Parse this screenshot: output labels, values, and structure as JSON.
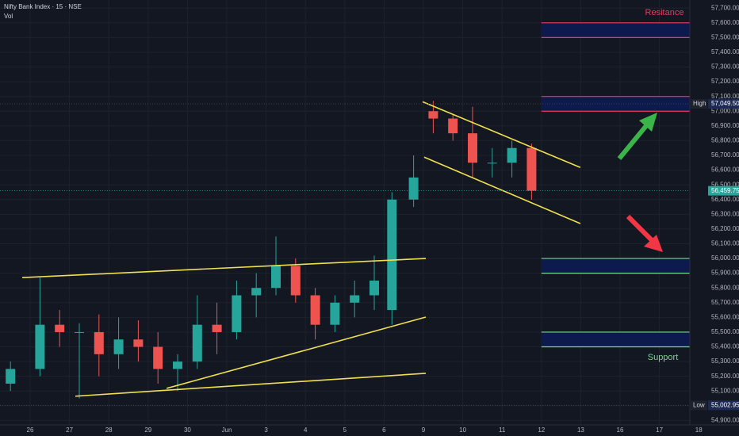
{
  "chart_data": {
    "type": "candlestick",
    "title": "Nifty Bank Index · 15 · NSE",
    "volume_label": "Vol",
    "x": [
      -0.5,
      0.25,
      0.75,
      1.25,
      1.75,
      2.25,
      2.75,
      3.25,
      3.75,
      4.25,
      4.75,
      5.25,
      5.75,
      6.25,
      6.75,
      7.25,
      7.75,
      8.25,
      8.75,
      9.2,
      9.75,
      10.25,
      10.75,
      11.25,
      11.75,
      12.25,
      12.75
    ],
    "open": [
      55150,
      55250,
      55550,
      55500,
      55500,
      55350,
      55450,
      55400,
      55250,
      55300,
      55550,
      55500,
      55750,
      55800,
      55950,
      55750,
      55550,
      55700,
      55750,
      55650,
      56400,
      57000,
      56950,
      56850,
      56650,
      56650,
      56750
    ],
    "high": [
      55300,
      55870,
      55650,
      55560,
      55620,
      55600,
      55580,
      55500,
      55350,
      55750,
      55700,
      55850,
      55900,
      56150,
      56000,
      55800,
      55750,
      55850,
      56020,
      56450,
      56700,
      57070,
      56980,
      57030,
      56750,
      56800,
      56780
    ],
    "low": [
      55100,
      55200,
      55400,
      55050,
      55200,
      55250,
      55300,
      55150,
      55100,
      55250,
      55350,
      55450,
      55600,
      55750,
      55700,
      55450,
      55500,
      55600,
      55650,
      55550,
      56350,
      56850,
      56800,
      56550,
      56550,
      56550,
      56400
    ],
    "close": [
      55250,
      55550,
      55500,
      55500,
      55350,
      55450,
      55400,
      55250,
      55300,
      55550,
      55500,
      55750,
      55800,
      55950,
      55750,
      55550,
      55700,
      55750,
      55850,
      56400,
      56550,
      56950,
      56850,
      56650,
      56650,
      56750,
      56460
    ],
    "up_color": "#26a69a",
    "down_color": "#ef5350",
    "xlim": [
      -0.766,
      16.774
    ],
    "xticks": [
      {
        "value": 0,
        "label": "26"
      },
      {
        "value": 1,
        "label": "27"
      },
      {
        "value": 2,
        "label": "28"
      },
      {
        "value": 3,
        "label": "29"
      },
      {
        "value": 4,
        "label": "30"
      },
      {
        "value": 5,
        "label": "Jun"
      },
      {
        "value": 6,
        "label": "3"
      },
      {
        "value": 7,
        "label": "4"
      },
      {
        "value": 8,
        "label": "5"
      },
      {
        "value": 9,
        "label": "6"
      },
      {
        "value": 10,
        "label": "9"
      },
      {
        "value": 11,
        "label": "10"
      },
      {
        "value": 12,
        "label": "11"
      },
      {
        "value": 13,
        "label": "12"
      },
      {
        "value": 14,
        "label": "13"
      },
      {
        "value": 15,
        "label": "16"
      },
      {
        "value": 16,
        "label": "17"
      },
      {
        "value": 17,
        "label": "18"
      }
    ],
    "ylim": [
      54870,
      57755
    ],
    "yticks": [
      {
        "value": 57700,
        "label": "57,700.00"
      },
      {
        "value": 57600,
        "label": "57,600.00"
      },
      {
        "value": 57500,
        "label": "57,500.00"
      },
      {
        "value": 57400,
        "label": "57,400.00"
      },
      {
        "value": 57300,
        "label": "57,300.00"
      },
      {
        "value": 57200,
        "label": "57,200.00"
      },
      {
        "value": 57100,
        "label": "57,100.00"
      },
      {
        "value": 57000,
        "label": "57,000.00"
      },
      {
        "value": 56900,
        "label": "56,900.00"
      },
      {
        "value": 56800,
        "label": "56,800.00"
      },
      {
        "value": 56700,
        "label": "56,700.00"
      },
      {
        "value": 56600,
        "label": "56,600.00"
      },
      {
        "value": 56500,
        "label": "56,500.00"
      },
      {
        "value": 56400,
        "label": "56,400.00"
      },
      {
        "value": 56300,
        "label": "56,300.00"
      },
      {
        "value": 56200,
        "label": "56,200.00"
      },
      {
        "value": 56100,
        "label": "56,100.00"
      },
      {
        "value": 56000,
        "label": "56,000.00"
      },
      {
        "value": 55900,
        "label": "55,900.00"
      },
      {
        "value": 55800,
        "label": "55,800.00"
      },
      {
        "value": 55700,
        "label": "55,700.00"
      },
      {
        "value": 55600,
        "label": "55,600.00"
      },
      {
        "value": 55500,
        "label": "55,500.00"
      },
      {
        "value": 55400,
        "label": "55,400.00"
      },
      {
        "value": 55300,
        "label": "55,300.00"
      },
      {
        "value": 55200,
        "label": "55,200.00"
      },
      {
        "value": 55100,
        "label": "55,100.00"
      },
      {
        "value": 55000,
        "label": "55,000.00"
      },
      {
        "value": 54900,
        "label": "54,900.00"
      }
    ],
    "grid": true,
    "trendline_color": "#f0e050",
    "trendlines": [
      {
        "x": [
          -0.2,
          10.06
        ],
        "y": [
          55870,
          56000
        ]
      },
      {
        "x": [
          3.47,
          10.06
        ],
        "y": [
          55118,
          55602
        ]
      },
      {
        "x": [
          1.15,
          10.06
        ],
        "y": [
          55065,
          55220
        ]
      },
      {
        "x": [
          9.98,
          13.99
        ],
        "y": [
          57064,
          56618
        ]
      },
      {
        "x": [
          10.02,
          13.99
        ],
        "y": [
          56688,
          56237
        ]
      }
    ],
    "zones": [
      {
        "x": [
          13,
          16.774
        ],
        "y": [
          57600,
          57500
        ],
        "color": "#f23660"
      },
      {
        "x": [
          13,
          16.774
        ],
        "y": [
          57100,
          57000
        ],
        "color": "#f23660"
      },
      {
        "x": [
          13,
          16.774
        ],
        "y": [
          56000,
          55900
        ],
        "color": "#7bd88f"
      },
      {
        "x": [
          13,
          16.774
        ],
        "y": [
          55500,
          55400
        ],
        "color": "#7bd88f"
      }
    ],
    "annotations": [
      {
        "text": "Resitance",
        "color": "#f23660"
      },
      {
        "text": "Support",
        "color": "#7bd88f"
      }
    ],
    "price_markers": [
      {
        "label": "High",
        "value": 57049.5,
        "value_label": "57,049.50",
        "color": "#1c2a55"
      },
      {
        "value": 56459.75,
        "value_label": "56,459.75",
        "color": "#26a69a"
      },
      {
        "label": "Low",
        "value": 55002.95,
        "value_label": "55,002.95",
        "color": "#1c2a55"
      }
    ]
  }
}
